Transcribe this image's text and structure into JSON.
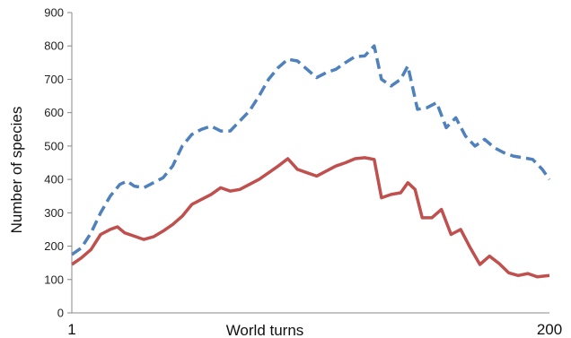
{
  "chart_data": {
    "type": "line",
    "title": "",
    "xlabel": "World turns",
    "ylabel": "Number of species",
    "xlim": [
      1,
      200
    ],
    "ylim": [
      0,
      900
    ],
    "x_tick_labels": [
      "1",
      "200"
    ],
    "y_ticks": [
      0,
      100,
      200,
      300,
      400,
      500,
      600,
      700,
      800,
      900
    ],
    "grid": false,
    "legend": "none",
    "series": [
      {
        "color": "#4F81BD",
        "style": "dashed",
        "points": [
          [
            1,
            175
          ],
          [
            5,
            195
          ],
          [
            9,
            240
          ],
          [
            13,
            300
          ],
          [
            17,
            350
          ],
          [
            21,
            385
          ],
          [
            24,
            395
          ],
          [
            27,
            380
          ],
          [
            31,
            375
          ],
          [
            35,
            390
          ],
          [
            39,
            405
          ],
          [
            43,
            440
          ],
          [
            47,
            500
          ],
          [
            51,
            535
          ],
          [
            55,
            550
          ],
          [
            59,
            560
          ],
          [
            63,
            545
          ],
          [
            67,
            545
          ],
          [
            71,
            575
          ],
          [
            75,
            605
          ],
          [
            79,
            650
          ],
          [
            83,
            700
          ],
          [
            87,
            735
          ],
          [
            91,
            760
          ],
          [
            95,
            755
          ],
          [
            99,
            730
          ],
          [
            103,
            705
          ],
          [
            107,
            720
          ],
          [
            111,
            730
          ],
          [
            115,
            750
          ],
          [
            119,
            768
          ],
          [
            123,
            770
          ],
          [
            127,
            800
          ],
          [
            130,
            700
          ],
          [
            134,
            680
          ],
          [
            138,
            700
          ],
          [
            141,
            740
          ],
          [
            145,
            610
          ],
          [
            149,
            615
          ],
          [
            153,
            630
          ],
          [
            157,
            555
          ],
          [
            161,
            585
          ],
          [
            165,
            530
          ],
          [
            169,
            500
          ],
          [
            173,
            520
          ],
          [
            177,
            495
          ],
          [
            181,
            480
          ],
          [
            185,
            470
          ],
          [
            189,
            465
          ],
          [
            193,
            460
          ],
          [
            197,
            430
          ],
          [
            200,
            400
          ]
        ]
      },
      {
        "color": "#C0504D",
        "style": "solid",
        "points": [
          [
            1,
            145
          ],
          [
            5,
            165
          ],
          [
            9,
            190
          ],
          [
            13,
            235
          ],
          [
            17,
            250
          ],
          [
            20,
            258
          ],
          [
            23,
            240
          ],
          [
            27,
            230
          ],
          [
            31,
            220
          ],
          [
            35,
            228
          ],
          [
            39,
            245
          ],
          [
            43,
            265
          ],
          [
            47,
            290
          ],
          [
            51,
            325
          ],
          [
            55,
            340
          ],
          [
            59,
            355
          ],
          [
            63,
            375
          ],
          [
            67,
            365
          ],
          [
            71,
            370
          ],
          [
            75,
            385
          ],
          [
            79,
            400
          ],
          [
            83,
            420
          ],
          [
            87,
            440
          ],
          [
            91,
            462
          ],
          [
            95,
            430
          ],
          [
            99,
            420
          ],
          [
            103,
            410
          ],
          [
            107,
            425
          ],
          [
            111,
            440
          ],
          [
            115,
            450
          ],
          [
            119,
            462
          ],
          [
            123,
            465
          ],
          [
            127,
            460
          ],
          [
            130,
            345
          ],
          [
            134,
            355
          ],
          [
            138,
            360
          ],
          [
            141,
            390
          ],
          [
            144,
            370
          ],
          [
            147,
            285
          ],
          [
            151,
            285
          ],
          [
            155,
            310
          ],
          [
            159,
            235
          ],
          [
            163,
            250
          ],
          [
            167,
            195
          ],
          [
            171,
            145
          ],
          [
            175,
            170
          ],
          [
            179,
            148
          ],
          [
            183,
            120
          ],
          [
            187,
            112
          ],
          [
            191,
            118
          ],
          [
            195,
            108
          ],
          [
            200,
            112
          ]
        ]
      }
    ]
  }
}
